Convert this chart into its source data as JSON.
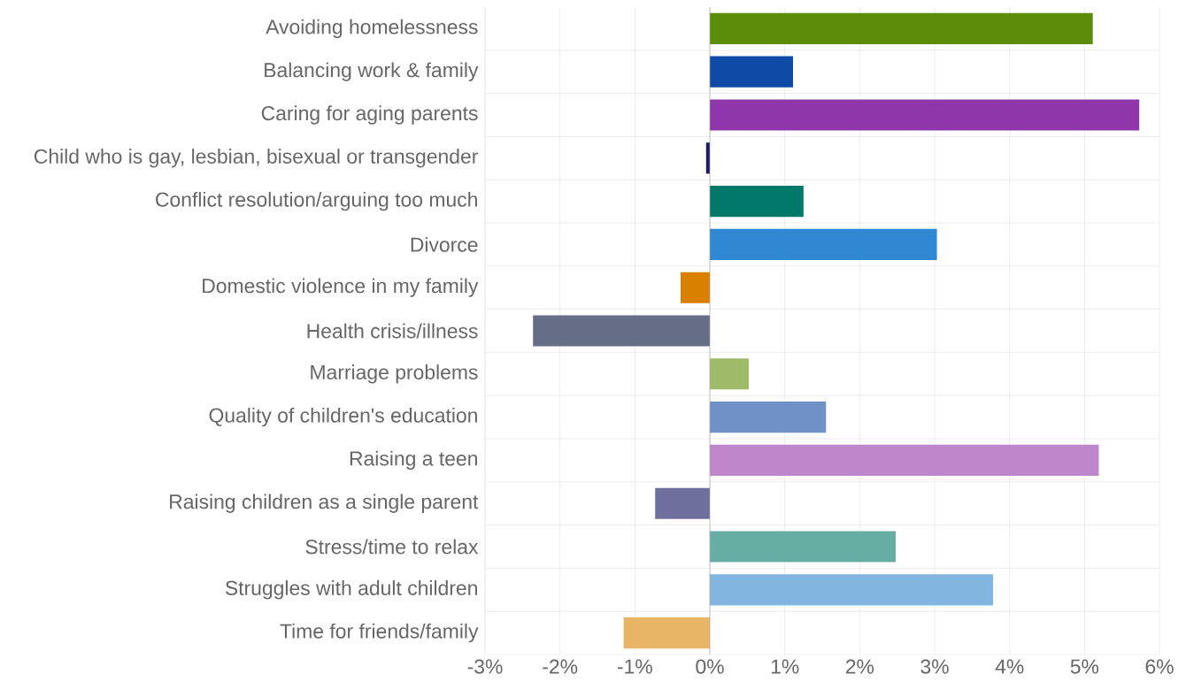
{
  "chart_data": {
    "type": "bar",
    "orientation": "horizontal",
    "categories": [
      "Avoiding homelessness",
      "Balancing work & family",
      "Caring for aging parents",
      "Child who is gay, lesbian, bisexual or transgender",
      "Conflict resolution/arguing too much",
      "Divorce",
      "Domestic violence in my family",
      "Health crisis/illness",
      "Marriage problems",
      "Quality of children's education",
      "Raising a teen",
      "Raising children as a single parent",
      "Stress/time to relax",
      "Struggles with adult children",
      "Time for friends/family"
    ],
    "values": [
      5.11,
      1.11,
      5.73,
      -0.05,
      1.25,
      3.03,
      -0.39,
      -2.36,
      0.52,
      1.55,
      5.19,
      -0.73,
      2.48,
      3.78,
      -1.15
    ],
    "colors": [
      "#5b8c0a",
      "#0f4aa6",
      "#8f36aa",
      "#1a1a5e",
      "#00796b",
      "#2f88d1",
      "#d98000",
      "#666e87",
      "#9fbb6a",
      "#6f91c8",
      "#be87cc",
      "#6f6f9e",
      "#66ada3",
      "#82b5e0",
      "#e8b466"
    ],
    "xlim": [
      -3,
      6
    ],
    "xticks": [
      {
        "value": -3,
        "label": "-3%"
      },
      {
        "value": -2,
        "label": "-2%"
      },
      {
        "value": -1,
        "label": "-1%"
      },
      {
        "value": 0,
        "label": "0%"
      },
      {
        "value": 1,
        "label": "1%"
      },
      {
        "value": 2,
        "label": "2%"
      },
      {
        "value": 3,
        "label": "3%"
      },
      {
        "value": 4,
        "label": "4%"
      },
      {
        "value": 5,
        "label": "5%"
      },
      {
        "value": 6,
        "label": "6%"
      }
    ],
    "grid": true
  }
}
